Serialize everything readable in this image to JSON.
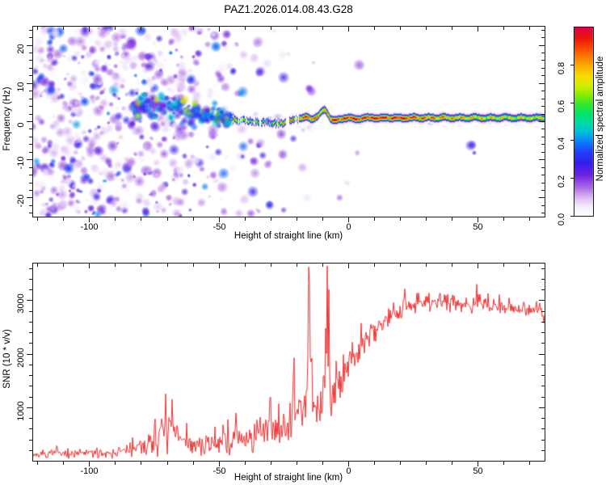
{
  "title": "PAZ1.2026.014.08.43.G28",
  "colors": {
    "snr_line": "#ee3333",
    "axis": "#1a1a1a",
    "background": "#ffffff"
  },
  "colorbar": {
    "label": "Normalized spectral amplitude",
    "tick_labels": [
      "0.0",
      "0.2",
      "0.4",
      "0.6",
      "0.8"
    ],
    "tick_values": [
      0.0,
      0.2,
      0.4,
      0.6,
      0.8
    ],
    "min": 0.0,
    "max": 1.0
  },
  "chart_data": [
    {
      "type": "heatmap",
      "title": "",
      "xlabel": "Height of straight line (km)",
      "ylabel": "Frequency (Hz)",
      "xlim": [
        -122,
        76
      ],
      "ylim": [
        -25,
        25
      ],
      "xticks": [
        -100,
        -50,
        0,
        50
      ],
      "xtick_minor_step": 10,
      "yticks": [
        -20,
        -10,
        0,
        10,
        20
      ],
      "ytick_minor_step": 2,
      "legend": "colorbar right, Normalized spectral amplitude 0.0-1.0",
      "grid": false,
      "colormap_stops": [
        [
          0.0,
          255,
          255,
          255
        ],
        [
          0.05,
          246,
          238,
          252
        ],
        [
          0.1,
          218,
          185,
          242
        ],
        [
          0.16,
          164,
          95,
          226
        ],
        [
          0.22,
          106,
          35,
          222
        ],
        [
          0.28,
          52,
          28,
          238
        ],
        [
          0.34,
          32,
          64,
          250
        ],
        [
          0.39,
          10,
          122,
          248
        ],
        [
          0.44,
          0,
          186,
          224
        ],
        [
          0.49,
          0,
          219,
          168
        ],
        [
          0.54,
          0,
          226,
          108
        ],
        [
          0.59,
          48,
          230,
          48
        ],
        [
          0.64,
          134,
          236,
          0
        ],
        [
          0.69,
          212,
          236,
          0
        ],
        [
          0.74,
          246,
          220,
          0
        ],
        [
          0.79,
          250,
          178,
          0
        ],
        [
          0.84,
          250,
          128,
          0
        ],
        [
          0.89,
          247,
          72,
          0
        ],
        [
          0.94,
          238,
          22,
          12
        ],
        [
          1.0,
          224,
          0,
          72
        ]
      ],
      "noise_zones": [
        {
          "km0": -122,
          "km1": -85,
          "per_km": 9.0,
          "note": "dense purple speckle, all frequencies"
        },
        {
          "km0": -85,
          "km1": -62,
          "per_km": 7.0
        },
        {
          "km0": -62,
          "km1": -45,
          "per_km": 4.0
        },
        {
          "km0": -45,
          "km1": -30,
          "per_km": 2.0
        },
        {
          "km0": -30,
          "km1": -12,
          "per_km": 0.9
        },
        {
          "km0": -12,
          "km1": 5,
          "per_km": 0.25
        },
        {
          "km0": 5,
          "km1": 76,
          "per_km": 0.06
        }
      ],
      "cluster_track": [
        [
          -82,
          4.6
        ],
        [
          -78,
          4.4
        ],
        [
          -74,
          4.1
        ],
        [
          -70,
          3.8
        ],
        [
          -66,
          3.2
        ],
        [
          -62,
          2.6
        ],
        [
          -58,
          2.0
        ],
        [
          -54,
          1.5
        ],
        [
          -50,
          1.0
        ],
        [
          -45,
          0.6
        ]
      ],
      "broken_band": [
        [
          -45,
          0.6,
          0.55
        ],
        [
          -40,
          0.2,
          0.6
        ],
        [
          -36,
          0.1,
          0.6
        ],
        [
          -32,
          -0.2,
          0.65
        ],
        [
          -28,
          -0.4,
          0.65
        ],
        [
          -25,
          -0.2,
          0.7
        ],
        [
          -22,
          0.4,
          0.75
        ],
        [
          -19,
          1.0,
          0.8
        ]
      ],
      "band": [
        [
          -19,
          1.1,
          0.8
        ],
        [
          -17.5,
          0.9,
          0.88
        ],
        [
          -16,
          1.2,
          0.8
        ],
        [
          -14.5,
          0.7,
          0.85
        ],
        [
          -13,
          1.0,
          0.8
        ],
        [
          -11.5,
          1.6,
          0.75
        ],
        [
          -10,
          2.8,
          0.72
        ],
        [
          -9,
          3.1,
          0.7
        ],
        [
          -8,
          2.2,
          0.78
        ],
        [
          -7,
          1.0,
          0.85
        ],
        [
          -6,
          0.4,
          0.9
        ],
        [
          -5,
          0.2,
          0.93
        ],
        [
          -4,
          0.4,
          0.9
        ],
        [
          -3,
          0.7,
          0.88
        ],
        [
          -2,
          0.9,
          0.86
        ],
        [
          -1,
          1.0,
          0.88
        ],
        [
          0,
          1.0,
          0.9
        ],
        [
          1.5,
          0.8,
          0.93
        ],
        [
          3,
          0.6,
          0.95
        ],
        [
          4.5,
          0.8,
          0.9
        ],
        [
          6,
          1.0,
          0.87
        ],
        [
          8,
          1.0,
          0.9
        ],
        [
          10,
          1.1,
          0.93
        ],
        [
          12,
          0.9,
          0.95
        ],
        [
          14,
          1.0,
          0.9
        ],
        [
          16,
          1.1,
          0.87
        ],
        [
          18,
          1.0,
          0.9
        ],
        [
          20,
          0.9,
          0.93
        ],
        [
          22,
          1.0,
          0.9
        ],
        [
          25,
          1.0,
          0.86
        ],
        [
          28,
          1.05,
          0.82
        ],
        [
          32,
          1.0,
          0.8
        ],
        [
          36,
          1.05,
          0.77
        ],
        [
          40,
          1.0,
          0.75
        ],
        [
          44,
          1.0,
          0.73
        ],
        [
          48,
          1.05,
          0.71
        ],
        [
          52,
          1.0,
          0.7
        ],
        [
          56,
          1.0,
          0.68
        ],
        [
          60,
          1.05,
          0.69
        ],
        [
          64,
          1.0,
          0.66
        ],
        [
          68,
          1.0,
          0.67
        ],
        [
          72,
          1.0,
          0.65
        ],
        [
          76,
          1.0,
          0.66
        ]
      ],
      "seed": 42
    },
    {
      "type": "line",
      "title": "",
      "xlabel": "Height of straight line (km)",
      "ylabel": "SNR (10 * v/v)",
      "xlim": [
        -122,
        76
      ],
      "ylim": [
        0,
        3700
      ],
      "xticks": [
        -100,
        -50,
        0,
        50
      ],
      "xtick_minor_step": 10,
      "yticks": [
        1000,
        2000,
        3000
      ],
      "ytick_minor_step": 200,
      "color": "#ee3333",
      "grid": false,
      "envelope": [
        [
          -122,
          110,
          70
        ],
        [
          -115,
          120,
          80
        ],
        [
          -108,
          125,
          85
        ],
        [
          -100,
          140,
          95
        ],
        [
          -94,
          150,
          100
        ],
        [
          -88,
          170,
          120
        ],
        [
          -83,
          210,
          150
        ],
        [
          -79,
          280,
          200
        ],
        [
          -75,
          380,
          280
        ],
        [
          -72,
          520,
          380
        ],
        [
          -70,
          560,
          420
        ],
        [
          -68,
          520,
          380
        ],
        [
          -65,
          430,
          300
        ],
        [
          -62,
          360,
          260
        ],
        [
          -59,
          280,
          190
        ],
        [
          -56,
          260,
          170
        ],
        [
          -52,
          300,
          210
        ],
        [
          -48,
          350,
          250
        ],
        [
          -44,
          380,
          270
        ],
        [
          -40,
          420,
          300
        ],
        [
          -37,
          450,
          330
        ],
        [
          -34,
          480,
          350
        ],
        [
          -31,
          540,
          400
        ],
        [
          -28,
          560,
          420
        ],
        [
          -25,
          640,
          480
        ],
        [
          -22,
          740,
          560
        ],
        [
          -19,
          850,
          640
        ],
        [
          -17,
          1000,
          760
        ],
        [
          -15.5,
          1600,
          1100
        ],
        [
          -14,
          1100,
          700
        ],
        [
          -12,
          950,
          550
        ],
        [
          -10,
          1050,
          600
        ],
        [
          -8.5,
          1700,
          1000
        ],
        [
          -7,
          1400,
          600
        ],
        [
          -5.5,
          1350,
          520
        ],
        [
          -4,
          1500,
          480
        ],
        [
          -2,
          1650,
          430
        ],
        [
          0,
          1800,
          400
        ],
        [
          2,
          1950,
          380
        ],
        [
          4,
          2080,
          360
        ],
        [
          6,
          2200,
          340
        ],
        [
          8,
          2330,
          320
        ],
        [
          10,
          2450,
          300
        ],
        [
          12,
          2550,
          280
        ],
        [
          14,
          2640,
          260
        ],
        [
          16,
          2720,
          240
        ],
        [
          18,
          2790,
          230
        ],
        [
          20,
          2850,
          220
        ],
        [
          23,
          2910,
          210
        ],
        [
          26,
          2940,
          200
        ],
        [
          30,
          2960,
          195
        ],
        [
          34,
          2980,
          190
        ],
        [
          38,
          2970,
          190
        ],
        [
          42,
          2960,
          185
        ],
        [
          46,
          2950,
          185
        ],
        [
          50,
          2940,
          180
        ],
        [
          54,
          2920,
          180
        ],
        [
          58,
          2910,
          175
        ],
        [
          62,
          2900,
          175
        ],
        [
          66,
          2880,
          170
        ],
        [
          70,
          2860,
          170
        ],
        [
          73,
          2840,
          165
        ],
        [
          75,
          2750,
          160
        ],
        [
          76,
          2700,
          160
        ]
      ],
      "spikes": [
        [
          -70.5,
          1250
        ],
        [
          -68,
          1150
        ],
        [
          -30,
          1190
        ],
        [
          -21,
          1600
        ],
        [
          -15.3,
          3620
        ],
        [
          -14.8,
          3300
        ],
        [
          -7.9,
          3640
        ],
        [
          -7.4,
          3200
        ]
      ],
      "seed": 7
    }
  ]
}
